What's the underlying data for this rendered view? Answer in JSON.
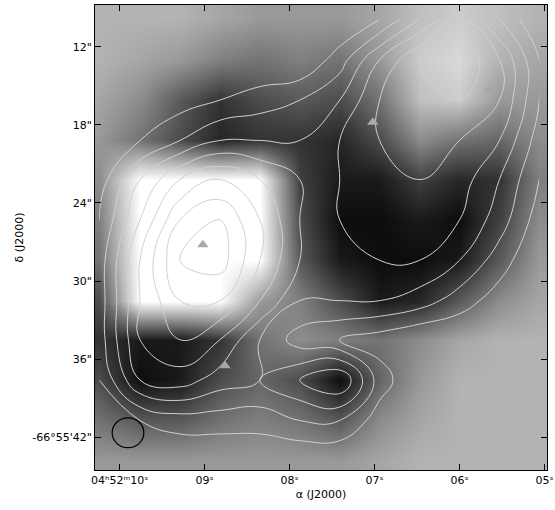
{
  "chart_data": {
    "type": "contour",
    "xlabel": "α (J2000)",
    "ylabel": "δ (J2000)",
    "xlim": [
      10.29,
      4.97
    ],
    "ylim": [
      44.5,
      8.8
    ],
    "xticks": [
      {
        "value": 10,
        "label": "04ʰ52ᵐ10ˢ"
      },
      {
        "value": 9,
        "label": "09ˢ"
      },
      {
        "value": 8,
        "label": "08ˢ"
      },
      {
        "value": 7,
        "label": "07ˢ"
      },
      {
        "value": 6,
        "label": "06ˢ"
      },
      {
        "value": 5,
        "label": "05ˢ"
      }
    ],
    "yticks": [
      {
        "value": 12,
        "label": "12\""
      },
      {
        "value": 18,
        "label": "18\""
      },
      {
        "value": 24,
        "label": "24\""
      },
      {
        "value": 30,
        "label": "30\""
      },
      {
        "value": 36,
        "label": "36\""
      },
      {
        "value": 42,
        "label": "-66°55'42\""
      }
    ],
    "grid": false,
    "image": {
      "x": [
        10.24,
        9.76,
        9.29,
        8.82,
        8.35,
        7.88,
        7.41,
        6.94,
        6.47,
        6.0,
        5.53,
        5.06
      ],
      "y": [
        9.9,
        13.0,
        16.1,
        19.2,
        22.2,
        25.3,
        28.4,
        31.5,
        34.5,
        37.6,
        40.7,
        43.8
      ],
      "zlim": [
        0,
        1
      ],
      "z": [
        [
          0.7,
          0.7,
          0.7,
          0.65,
          0.6,
          0.6,
          0.6,
          0.65,
          0.75,
          0.8,
          0.75,
          0.7
        ],
        [
          0.7,
          0.65,
          0.6,
          0.5,
          0.45,
          0.5,
          0.45,
          0.6,
          0.8,
          0.85,
          0.7,
          0.65
        ],
        [
          0.65,
          0.55,
          0.35,
          0.2,
          0.3,
          0.35,
          0.3,
          0.45,
          0.75,
          0.8,
          0.6,
          0.6
        ],
        [
          0.6,
          0.45,
          0.3,
          0.15,
          0.2,
          0.2,
          0.15,
          0.3,
          0.55,
          0.45,
          0.4,
          0.55
        ],
        [
          0.55,
          1,
          1,
          1,
          1,
          0.25,
          0.1,
          0.1,
          0.25,
          0.15,
          0.2,
          0.5
        ],
        [
          0.5,
          1,
          1,
          1,
          1,
          0.3,
          0.05,
          0.05,
          0.1,
          0.05,
          0.25,
          0.55
        ],
        [
          0.45,
          1,
          1,
          1,
          1,
          0.35,
          0.1,
          0.05,
          0.05,
          0.1,
          0.35,
          0.6
        ],
        [
          0.3,
          1,
          1,
          1,
          0.6,
          0.5,
          0.3,
          0.1,
          0.15,
          0.35,
          0.55,
          0.65
        ],
        [
          0.2,
          0.1,
          0.1,
          0.2,
          0.45,
          0.55,
          0.5,
          0.45,
          0.55,
          0.65,
          0.7,
          0.7
        ],
        [
          0.3,
          0.05,
          0.1,
          0.3,
          0.4,
          0.3,
          0.05,
          0.4,
          0.6,
          0.7,
          0.7,
          0.7
        ],
        [
          0.45,
          0.35,
          0.35,
          0.45,
          0.5,
          0.45,
          0.35,
          0.55,
          0.65,
          0.7,
          0.7,
          0.7
        ],
        [
          0.6,
          0.6,
          0.6,
          0.6,
          0.6,
          0.6,
          0.6,
          0.65,
          0.7,
          0.7,
          0.7,
          0.7
        ]
      ]
    },
    "contours": {
      "color": "#d0d0d0",
      "levels": {
        "start": 1,
        "end": 8,
        "size": 1
      },
      "x": [
        10.24,
        9.76,
        9.29,
        8.82,
        8.35,
        7.88,
        7.41,
        6.94,
        6.47,
        6.0,
        5.53,
        5.06
      ],
      "y": [
        9.9,
        13.0,
        16.1,
        19.2,
        22.2,
        25.3,
        28.4,
        31.5,
        34.5,
        37.6,
        40.7,
        43.8
      ],
      "z": [
        [
          0,
          0,
          0,
          0,
          0,
          0,
          0,
          1,
          3,
          5,
          3,
          1
        ],
        [
          0,
          0,
          0,
          0,
          0,
          0,
          1.5,
          4,
          6,
          7,
          5,
          2
        ],
        [
          0,
          0,
          0.5,
          1,
          1.5,
          2,
          3,
          5,
          6,
          6,
          5,
          2
        ],
        [
          0,
          1,
          2,
          3,
          3,
          3,
          4,
          5,
          5.5,
          5,
          4,
          1.5
        ],
        [
          0.5,
          3,
          5,
          6,
          5,
          4,
          4,
          5,
          5,
          4.5,
          3,
          1
        ],
        [
          1,
          4,
          7,
          8,
          6,
          4,
          4,
          4.5,
          4.5,
          4,
          2.5,
          0.5
        ],
        [
          1.5,
          5,
          8,
          8.5,
          6,
          4,
          4,
          4,
          4,
          3,
          1.5,
          0
        ],
        [
          1.5,
          5,
          7,
          7,
          5,
          3,
          3,
          3,
          2.5,
          1.5,
          0.5,
          0
        ],
        [
          1.5,
          5,
          6,
          5,
          3,
          1.5,
          1,
          0.5,
          0,
          0,
          0,
          0
        ],
        [
          1,
          4,
          4.5,
          3.5,
          3,
          4,
          5,
          1.5,
          0,
          0,
          0,
          0
        ],
        [
          0,
          1,
          1.5,
          1.5,
          1.5,
          2,
          2,
          0.5,
          0,
          0,
          0,
          0
        ],
        [
          0,
          0,
          0,
          0,
          0,
          0,
          0,
          0,
          0,
          0,
          0,
          0
        ]
      ]
    },
    "markers": {
      "marker": "triangle-up",
      "color": "#a8a8a8",
      "x": [
        9.02,
        7.02,
        5.65,
        8.76
      ],
      "y": [
        27.2,
        17.8,
        15.3,
        36.5
      ]
    }
  }
}
